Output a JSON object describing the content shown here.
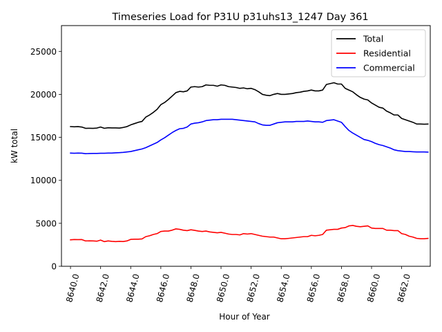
{
  "chart_data": {
    "type": "line",
    "title": "Timeseries Load for P31U p31uhs13_1247  Day 361",
    "xlabel": "Hour of Year",
    "ylabel": "kW total",
    "xlim": [
      8639.4,
      8663.9
    ],
    "ylim": [
      0,
      28000
    ],
    "xticks": [
      8640,
      8642,
      8644,
      8646,
      8648,
      8650,
      8652,
      8654,
      8656,
      8658,
      8660,
      8662
    ],
    "xtick_labels": [
      "8640.0",
      "8642.0",
      "8644.0",
      "8646.0",
      "8648.0",
      "8650.0",
      "8652.0",
      "8654.0",
      "8656.0",
      "8658.0",
      "8660.0",
      "8662.0"
    ],
    "yticks": [
      0,
      5000,
      10000,
      15000,
      20000,
      25000
    ],
    "ytick_labels": [
      "0",
      "5000",
      "10000",
      "15000",
      "20000",
      "25000"
    ],
    "legend_position": "top-right",
    "x": [
      8640.0,
      8640.25,
      8640.5,
      8640.75,
      8641.0,
      8641.25,
      8641.5,
      8641.75,
      8642.0,
      8642.25,
      8642.5,
      8642.75,
      8643.0,
      8643.25,
      8643.5,
      8643.75,
      8644.0,
      8644.25,
      8644.5,
      8644.75,
      8645.0,
      8645.25,
      8645.5,
      8645.75,
      8646.0,
      8646.25,
      8646.5,
      8646.75,
      8647.0,
      8647.25,
      8647.5,
      8647.75,
      8648.0,
      8648.25,
      8648.5,
      8648.75,
      8649.0,
      8649.25,
      8649.5,
      8649.75,
      8650.0,
      8650.25,
      8650.5,
      8650.75,
      8651.0,
      8651.25,
      8651.5,
      8651.75,
      8652.0,
      8652.25,
      8652.5,
      8652.75,
      8653.0,
      8653.25,
      8653.5,
      8653.75,
      8654.0,
      8654.25,
      8654.5,
      8654.75,
      8655.0,
      8655.25,
      8655.5,
      8655.75,
      8656.0,
      8656.25,
      8656.5,
      8656.75,
      8657.0,
      8657.25,
      8657.5,
      8657.75,
      8658.0,
      8658.25,
      8658.5,
      8658.75,
      8659.0,
      8659.25,
      8659.5,
      8659.75,
      8660.0,
      8660.25,
      8660.5,
      8660.75,
      8661.0,
      8661.25,
      8661.5,
      8661.75,
      8662.0,
      8662.25,
      8662.5,
      8662.75,
      8663.0,
      8663.25,
      8663.5,
      8663.75
    ],
    "series": [
      {
        "name": "Total",
        "color": "#000000",
        "values": [
          16250,
          16230,
          16250,
          16200,
          16050,
          16060,
          16050,
          16080,
          16200,
          16050,
          16120,
          16100,
          16100,
          16080,
          16150,
          16250,
          16450,
          16600,
          16750,
          16850,
          17350,
          17600,
          17900,
          18250,
          18800,
          19050,
          19400,
          19800,
          20200,
          20350,
          20300,
          20400,
          20850,
          20900,
          20850,
          20900,
          21100,
          21050,
          21050,
          20950,
          21100,
          21050,
          20900,
          20850,
          20800,
          20700,
          20750,
          20650,
          20700,
          20550,
          20300,
          20000,
          19900,
          19850,
          20000,
          20100,
          20000,
          20000,
          20050,
          20100,
          20200,
          20250,
          20350,
          20400,
          20500,
          20400,
          20400,
          20500,
          21150,
          21250,
          21350,
          21200,
          21200,
          20700,
          20500,
          20300,
          19950,
          19650,
          19450,
          19350,
          19000,
          18750,
          18500,
          18400,
          18050,
          17850,
          17600,
          17600,
          17200,
          17050,
          16900,
          16750,
          16550,
          16550,
          16530,
          16550
        ]
      },
      {
        "name": "Residential",
        "color": "#ff0000",
        "values": [
          3080,
          3110,
          3100,
          3110,
          2950,
          2960,
          2950,
          2920,
          3050,
          2870,
          2950,
          2900,
          2870,
          2900,
          2880,
          2950,
          3130,
          3150,
          3150,
          3180,
          3450,
          3550,
          3700,
          3800,
          4050,
          4100,
          4100,
          4200,
          4350,
          4300,
          4200,
          4150,
          4250,
          4180,
          4100,
          4050,
          4100,
          4000,
          3950,
          3900,
          3950,
          3850,
          3750,
          3700,
          3700,
          3650,
          3800,
          3750,
          3800,
          3700,
          3600,
          3500,
          3450,
          3400,
          3400,
          3300,
          3200,
          3200,
          3250,
          3300,
          3350,
          3400,
          3450,
          3450,
          3600,
          3550,
          3600,
          3700,
          4200,
          4250,
          4300,
          4300,
          4450,
          4500,
          4700,
          4750,
          4650,
          4600,
          4650,
          4700,
          4450,
          4400,
          4400,
          4400,
          4200,
          4200,
          4150,
          4150,
          3800,
          3700,
          3500,
          3400,
          3250,
          3200,
          3200,
          3250
        ]
      },
      {
        "name": "Commercial",
        "color": "#0000ff",
        "values": [
          13170,
          13150,
          13170,
          13160,
          13100,
          13120,
          13130,
          13130,
          13150,
          13150,
          13170,
          13170,
          13200,
          13220,
          13250,
          13300,
          13350,
          13450,
          13550,
          13650,
          13800,
          14000,
          14200,
          14400,
          14700,
          14950,
          15250,
          15550,
          15800,
          16000,
          16050,
          16200,
          16550,
          16650,
          16700,
          16800,
          16950,
          17000,
          17050,
          17050,
          17100,
          17100,
          17100,
          17100,
          17050,
          17000,
          16950,
          16900,
          16850,
          16800,
          16600,
          16450,
          16400,
          16400,
          16550,
          16700,
          16750,
          16800,
          16800,
          16800,
          16850,
          16850,
          16850,
          16900,
          16850,
          16800,
          16800,
          16750,
          16950,
          17000,
          17050,
          16900,
          16750,
          16250,
          15800,
          15500,
          15250,
          15000,
          14750,
          14650,
          14500,
          14300,
          14150,
          14050,
          13900,
          13750,
          13550,
          13450,
          13400,
          13350,
          13350,
          13320,
          13300,
          13300,
          13300,
          13280
        ]
      }
    ]
  }
}
